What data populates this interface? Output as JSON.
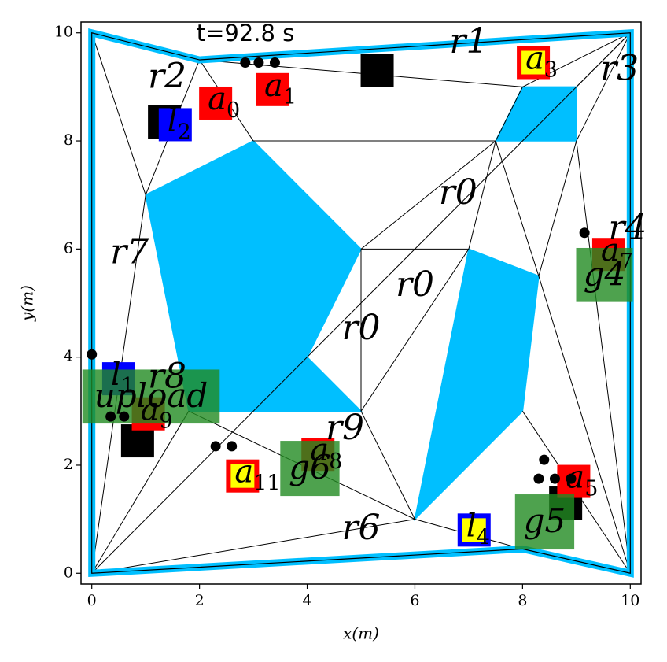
{
  "chart_data": {
    "type": "map",
    "title": "t=92.8 s",
    "x_label": "x(m)",
    "y_label": "y(m)",
    "xlim": [
      -0.2,
      10.2
    ],
    "ylim": [
      -0.2,
      10.2
    ],
    "xticks": [
      0,
      2,
      4,
      6,
      8,
      10
    ],
    "yticks": [
      0,
      2,
      4,
      6,
      8,
      10
    ],
    "boundary_color": "#00bfff",
    "obstacle_color": "#00bfff",
    "goal_color": "#228b22",
    "boundary": {
      "x": [
        0,
        2,
        10,
        10,
        8,
        0
      ],
      "y": [
        10,
        9.5,
        10,
        0,
        0.45,
        0
      ]
    },
    "obstacles": [
      {
        "x": [
          1,
          3,
          5,
          4,
          5,
          1.8
        ],
        "y": [
          7,
          8,
          6,
          4,
          3,
          3
        ]
      },
      {
        "x": [
          7,
          8.3,
          8,
          6
        ],
        "y": [
          6,
          5.5,
          3,
          1
        ]
      },
      {
        "x": [
          8,
          9,
          9,
          7.5
        ],
        "y": [
          9,
          9,
          8,
          8
        ]
      }
    ],
    "edges": [
      {
        "x": [
          0,
          1
        ],
        "y": [
          10,
          7
        ]
      },
      {
        "x": [
          2,
          1
        ],
        "y": [
          9.5,
          7
        ]
      },
      {
        "x": [
          2,
          3
        ],
        "y": [
          9.5,
          8
        ]
      },
      {
        "x": [
          2,
          8
        ],
        "y": [
          9.5,
          9
        ]
      },
      {
        "x": [
          3,
          7.5
        ],
        "y": [
          8,
          8
        ]
      },
      {
        "x": [
          7.5,
          8
        ],
        "y": [
          8,
          9
        ]
      },
      {
        "x": [
          8,
          10
        ],
        "y": [
          9,
          10
        ]
      },
      {
        "x": [
          9,
          10
        ],
        "y": [
          9,
          10
        ]
      },
      {
        "x": [
          9,
          10
        ],
        "y": [
          8,
          10
        ]
      },
      {
        "x": [
          9,
          10
        ],
        "y": [
          8,
          0
        ]
      },
      {
        "x": [
          9,
          8.3
        ],
        "y": [
          8,
          5.5
        ]
      },
      {
        "x": [
          7.5,
          5
        ],
        "y": [
          8,
          6
        ]
      },
      {
        "x": [
          7.5,
          7
        ],
        "y": [
          8,
          6
        ]
      },
      {
        "x": [
          7.5,
          8.3
        ],
        "y": [
          8,
          5.5
        ]
      },
      {
        "x": [
          5,
          7
        ],
        "y": [
          6,
          6
        ]
      },
      {
        "x": [
          5,
          5
        ],
        "y": [
          6,
          3
        ]
      },
      {
        "x": [
          7,
          5
        ],
        "y": [
          6,
          3
        ]
      },
      {
        "x": [
          5,
          6
        ],
        "y": [
          3,
          1
        ]
      },
      {
        "x": [
          1.8,
          6
        ],
        "y": [
          3,
          1
        ]
      },
      {
        "x": [
          1,
          0
        ],
        "y": [
          7,
          0
        ]
      },
      {
        "x": [
          1.8,
          0
        ],
        "y": [
          3,
          0
        ]
      },
      {
        "x": [
          0,
          6
        ],
        "y": [
          0,
          1
        ]
      },
      {
        "x": [
          6,
          8
        ],
        "y": [
          1,
          0.45
        ]
      },
      {
        "x": [
          8,
          10
        ],
        "y": [
          3,
          0
        ]
      },
      {
        "x": [
          8.3,
          10
        ],
        "y": [
          5.5,
          0
        ]
      },
      {
        "x": [
          0,
          10
        ],
        "y": [
          0,
          10
        ]
      }
    ],
    "goals": [
      {
        "label": "upload",
        "x": 1.1,
        "y": 3.27,
        "w": 2.55,
        "h": 1.0
      },
      {
        "label": "g6",
        "x": 4.05,
        "y": 1.94,
        "w": 1.1,
        "h": 1.02
      },
      {
        "label": "g4",
        "x": 9.52,
        "y": 5.52,
        "w": 1.05,
        "h": 1.0
      },
      {
        "label": "g5",
        "x": 8.41,
        "y": 0.95,
        "w": 1.1,
        "h": 1.02
      }
    ],
    "agents": [
      {
        "name": "a",
        "sub": "0",
        "x": 2.3,
        "y": 8.7,
        "fill": "#ff0000",
        "edge": "#ff0000"
      },
      {
        "name": "a",
        "sub": "1",
        "x": 3.35,
        "y": 8.95,
        "fill": "#ff0000",
        "edge": "#ff0000"
      },
      {
        "name": "a",
        "sub": "3",
        "x": 8.2,
        "y": 9.45,
        "fill": "#ffff00",
        "edge": "#ff0000"
      },
      {
        "name": "a",
        "sub": "11",
        "x": 2.8,
        "y": 1.8,
        "fill": "#ffff00",
        "edge": "#ff0000"
      },
      {
        "name": "a",
        "sub": "9",
        "x": 1.05,
        "y": 2.95,
        "fill": "#ff0000",
        "edge": "#ff0000"
      },
      {
        "name": "a",
        "sub": "8",
        "x": 4.2,
        "y": 2.2,
        "fill": "#ff0000",
        "edge": "#ff0000"
      },
      {
        "name": "a",
        "sub": "7",
        "x": 9.6,
        "y": 5.9,
        "fill": "#ff0000",
        "edge": "#ff0000"
      },
      {
        "name": "a",
        "sub": "5",
        "x": 8.95,
        "y": 1.7,
        "fill": "#ff0000",
        "edge": "#ff0000"
      },
      {
        "name": "l",
        "sub": "2",
        "x": 1.55,
        "y": 8.3,
        "fill": "#0000ff",
        "edge": "#0000ff"
      },
      {
        "name": "l",
        "sub": "4",
        "x": 7.1,
        "y": 0.8,
        "fill": "#ffff00",
        "edge": "#0000ff"
      },
      {
        "name": "l",
        "sub": "1",
        "x": 0.5,
        "y": 3.6,
        "fill": "#0000ff",
        "edge": "#0000ff"
      }
    ],
    "blocks": {
      "x": [
        1.35,
        5.3,
        0.85,
        8.8
      ],
      "y": [
        8.35,
        9.3,
        2.45,
        1.3
      ]
    },
    "dots": {
      "x": [
        2.85,
        3.1,
        3.4,
        2.3,
        2.6,
        0,
        0.35,
        0.6,
        9.15,
        8.4,
        8.3,
        8.6,
        8.9
      ],
      "y": [
        9.45,
        9.45,
        9.45,
        2.35,
        2.35,
        4.05,
        2.9,
        2.9,
        6.3,
        2.1,
        1.75,
        1.75,
        1.75
      ]
    },
    "regions": [
      {
        "label": "r0",
        "x": 6.8,
        "y": 7.0
      },
      {
        "label": "r0",
        "x": 6.0,
        "y": 5.3
      },
      {
        "label": "r0",
        "x": 5.0,
        "y": 4.5
      },
      {
        "label": "r1",
        "x": 7.0,
        "y": 9.8
      },
      {
        "label": "r2",
        "x": 1.4,
        "y": 9.15
      },
      {
        "label": "r3",
        "x": 9.8,
        "y": 9.3
      },
      {
        "label": "r4",
        "x": 9.95,
        "y": 6.35
      },
      {
        "label": "r6",
        "x": 5.0,
        "y": 0.8
      },
      {
        "label": "r7",
        "x": 0.7,
        "y": 5.9
      },
      {
        "label": "r8",
        "x": 1.4,
        "y": 3.6
      },
      {
        "label": "r9",
        "x": 4.7,
        "y": 2.65
      }
    ]
  }
}
